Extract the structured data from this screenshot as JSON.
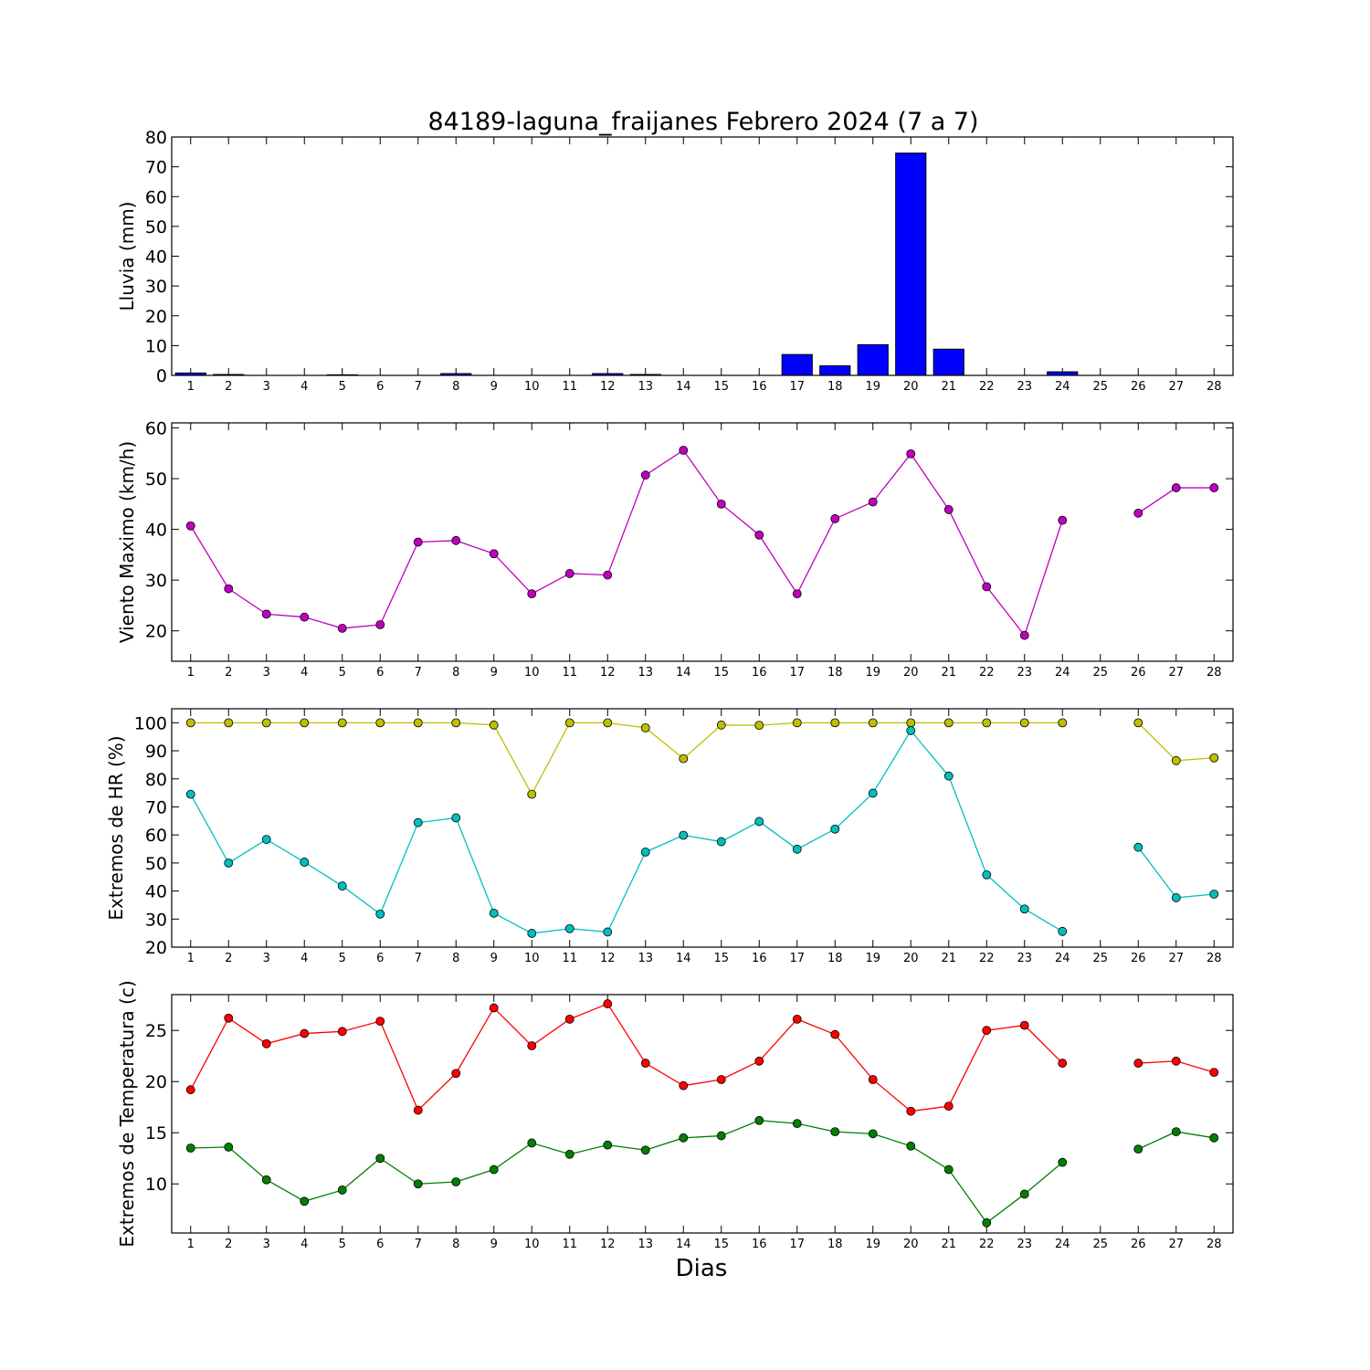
{
  "figure": {
    "title": "84189-laguna_fraijanes Febrero 2024  (7 a 7)",
    "xlabel": "Dias"
  },
  "chart_data": [
    {
      "type": "bar",
      "ylabel": "Lluvia (mm)",
      "ylim": [
        0,
        80
      ],
      "yticks": [
        0,
        10,
        20,
        30,
        40,
        50,
        60,
        70,
        80
      ],
      "xticks": [
        1,
        2,
        3,
        4,
        5,
        6,
        7,
        8,
        9,
        10,
        11,
        12,
        13,
        14,
        15,
        16,
        17,
        18,
        19,
        20,
        21,
        22,
        23,
        24,
        25,
        26,
        27,
        28
      ],
      "x": [
        1,
        2,
        3,
        4,
        5,
        6,
        7,
        8,
        9,
        10,
        11,
        12,
        13,
        14,
        15,
        16,
        17,
        18,
        19,
        20,
        21,
        22,
        23,
        24,
        25,
        26,
        27,
        28
      ],
      "series": [
        {
          "color": "#0000ff",
          "values": [
            0.8,
            0.3,
            0,
            0,
            0.2,
            0,
            0,
            0.6,
            0,
            0,
            0,
            0.6,
            0.3,
            0,
            0,
            0,
            7.0,
            3.2,
            10.3,
            74.6,
            8.8,
            0,
            0,
            1.2,
            0,
            0,
            0,
            0
          ]
        }
      ]
    },
    {
      "type": "line",
      "ylabel": "Viento Maximo (km/h)",
      "ylim": [
        14,
        61
      ],
      "yticks": [
        20,
        30,
        40,
        50,
        60
      ],
      "xticks": [
        1,
        2,
        3,
        4,
        5,
        6,
        7,
        8,
        9,
        10,
        11,
        12,
        13,
        14,
        15,
        16,
        17,
        18,
        19,
        20,
        21,
        22,
        23,
        24,
        25,
        26,
        27,
        28
      ],
      "x": [
        1,
        2,
        3,
        4,
        5,
        6,
        7,
        8,
        9,
        10,
        11,
        12,
        13,
        14,
        15,
        16,
        17,
        18,
        19,
        20,
        21,
        22,
        23,
        24,
        25,
        26,
        27,
        28
      ],
      "series": [
        {
          "color": "#bf00bf",
          "values": [
            40.7,
            28.3,
            23.3,
            22.7,
            20.5,
            21.2,
            37.5,
            37.8,
            35.2,
            27.3,
            31.3,
            31.0,
            50.7,
            55.6,
            45.0,
            38.9,
            27.3,
            42.1,
            45.4,
            54.9,
            43.9,
            28.7,
            19.1,
            41.8,
            null,
            43.2,
            48.2,
            48.2
          ]
        }
      ]
    },
    {
      "type": "line",
      "ylabel": "Extremos de HR (%)",
      "ylim": [
        20,
        105
      ],
      "yticks": [
        20,
        30,
        40,
        50,
        60,
        70,
        80,
        90,
        100
      ],
      "xticks": [
        1,
        2,
        3,
        4,
        5,
        6,
        7,
        8,
        9,
        10,
        11,
        12,
        13,
        14,
        15,
        16,
        17,
        18,
        19,
        20,
        21,
        22,
        23,
        24,
        25,
        26,
        27,
        28
      ],
      "x": [
        1,
        2,
        3,
        4,
        5,
        6,
        7,
        8,
        9,
        10,
        11,
        12,
        13,
        14,
        15,
        16,
        17,
        18,
        19,
        20,
        21,
        22,
        23,
        24,
        25,
        26,
        27,
        28
      ],
      "series": [
        {
          "color": "#bfbf00",
          "values": [
            100,
            100,
            100,
            100,
            100,
            100,
            100,
            100,
            99.2,
            74.5,
            100,
            100,
            98.2,
            87.2,
            99.2,
            99.1,
            100,
            100,
            100,
            100,
            100,
            100,
            100,
            100,
            null,
            100,
            86.5,
            87.5
          ]
        },
        {
          "color": "#00bfbf",
          "values": [
            74.5,
            50.0,
            58.4,
            50.3,
            41.8,
            31.8,
            64.4,
            66.1,
            32.1,
            24.9,
            26.6,
            25.4,
            53.9,
            59.9,
            57.6,
            64.8,
            54.9,
            62.1,
            74.9,
            97.2,
            81.0,
            45.8,
            33.6,
            25.6,
            null,
            55.6,
            37.6,
            38.9
          ]
        }
      ]
    },
    {
      "type": "line",
      "ylabel": "Extremos de Temperatura (c)",
      "ylim": [
        5.2,
        28.5
      ],
      "yticks": [
        10,
        15,
        20,
        25
      ],
      "xticks": [
        1,
        2,
        3,
        4,
        5,
        6,
        7,
        8,
        9,
        10,
        11,
        12,
        13,
        14,
        15,
        16,
        17,
        18,
        19,
        20,
        21,
        22,
        23,
        24,
        25,
        26,
        27,
        28
      ],
      "x": [
        1,
        2,
        3,
        4,
        5,
        6,
        7,
        8,
        9,
        10,
        11,
        12,
        13,
        14,
        15,
        16,
        17,
        18,
        19,
        20,
        21,
        22,
        23,
        24,
        25,
        26,
        27,
        28
      ],
      "series": [
        {
          "color": "#ff0000",
          "values": [
            19.2,
            26.2,
            23.7,
            24.7,
            24.9,
            25.9,
            17.2,
            20.8,
            27.2,
            23.5,
            26.1,
            27.6,
            21.8,
            19.6,
            20.2,
            22.0,
            26.1,
            24.6,
            20.2,
            17.1,
            17.6,
            25.0,
            25.5,
            21.8,
            null,
            21.8,
            22.0,
            20.9
          ]
        },
        {
          "color": "#007f00",
          "values": [
            13.5,
            13.6,
            10.4,
            8.3,
            9.4,
            12.5,
            10.0,
            10.2,
            11.4,
            14.0,
            12.9,
            13.8,
            13.3,
            14.5,
            14.7,
            16.2,
            15.9,
            15.1,
            14.9,
            13.7,
            11.4,
            6.2,
            9.0,
            12.1,
            null,
            13.4,
            15.1,
            14.5
          ]
        }
      ]
    }
  ]
}
